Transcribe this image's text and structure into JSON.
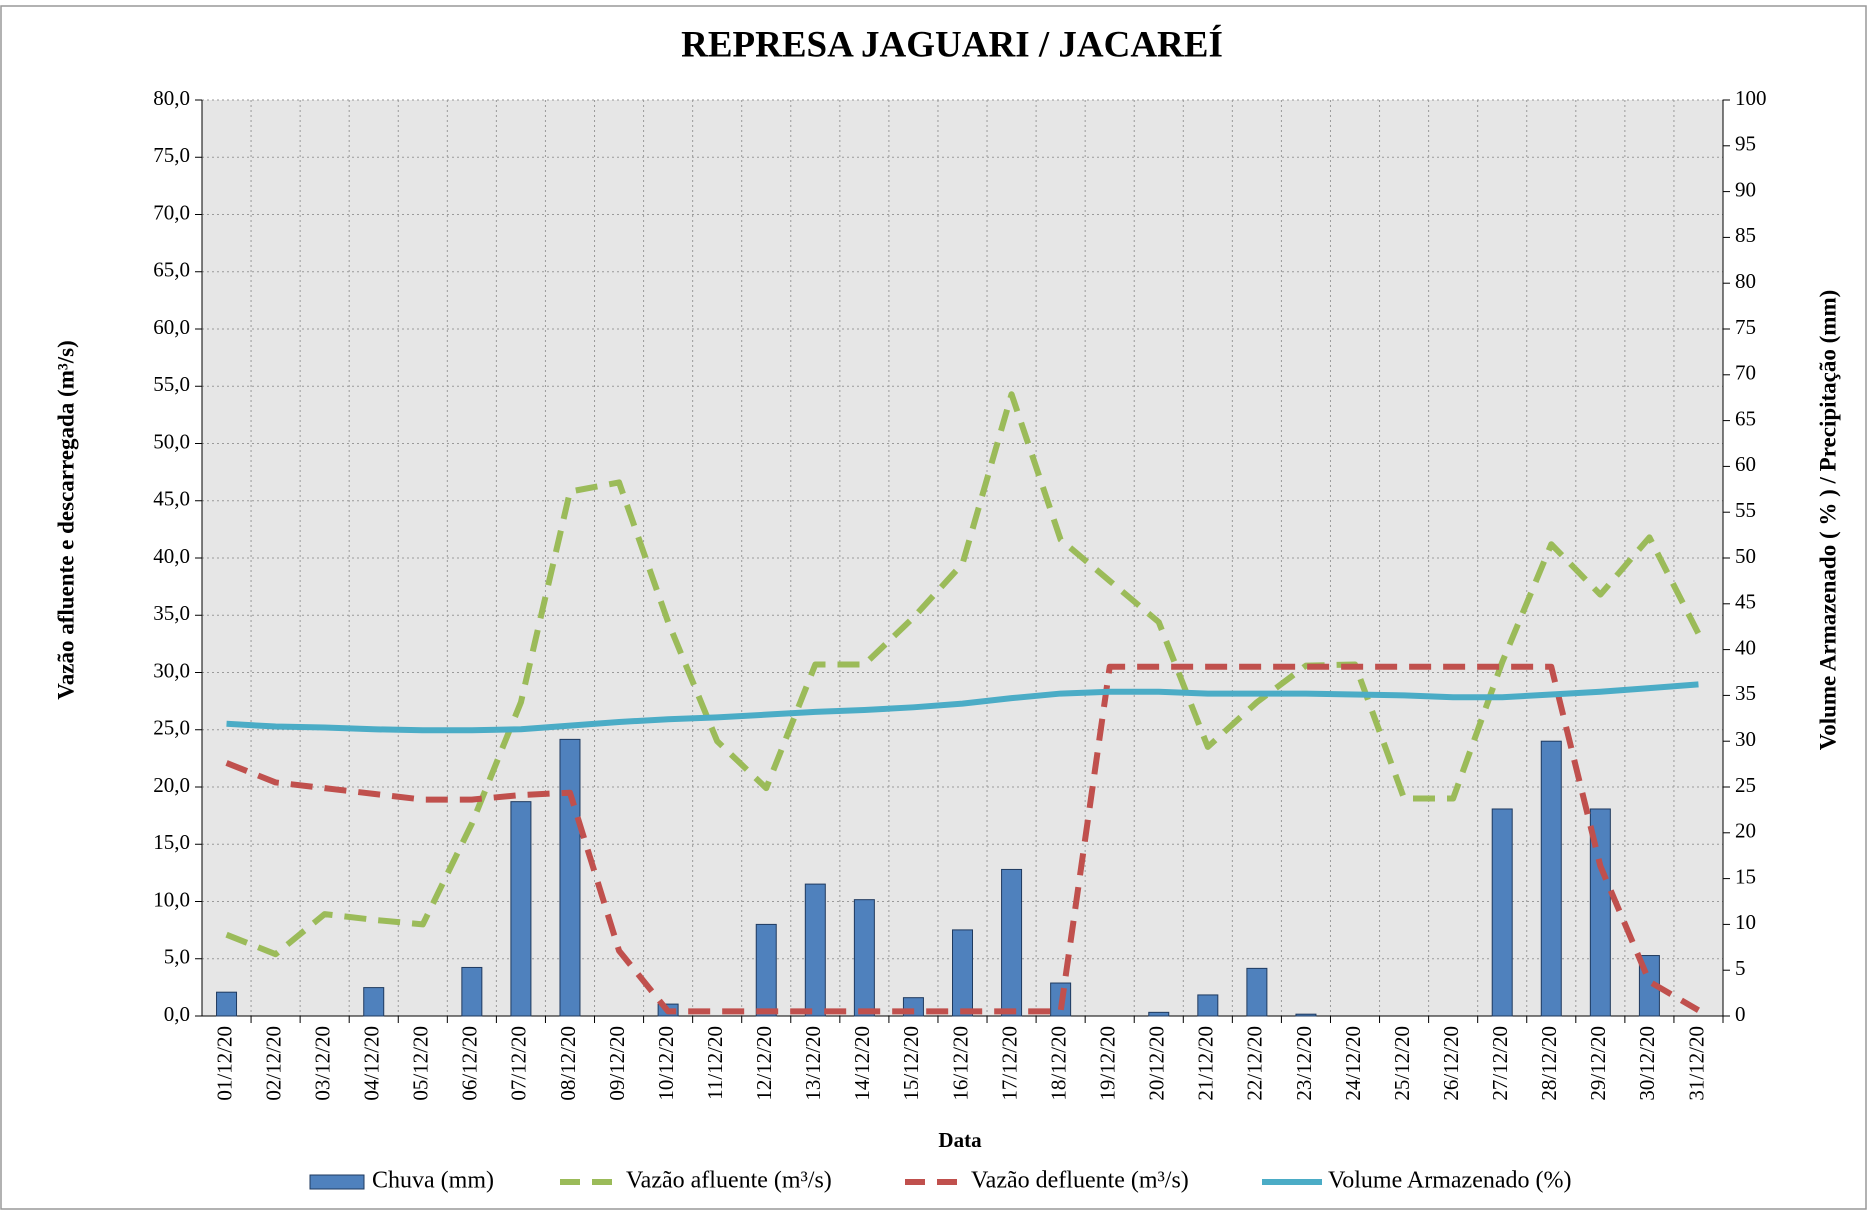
{
  "chart_data": {
    "type": "combo",
    "title": "REPRESA JAGUARI / JACAREÍ",
    "x_label": "Data",
    "y_label": "Vazão afluente e descarregada (m³/s)",
    "y2_label": "Volume Armazenado ( % ) / Precipitação  (mm)",
    "categories": [
      "01/12/20",
      "02/12/20",
      "03/12/20",
      "04/12/20",
      "05/12/20",
      "06/12/20",
      "07/12/20",
      "08/12/20",
      "09/12/20",
      "10/12/20",
      "11/12/20",
      "12/12/20",
      "13/12/20",
      "14/12/20",
      "15/12/20",
      "16/12/20",
      "17/12/20",
      "18/12/20",
      "19/12/20",
      "20/12/20",
      "21/12/20",
      "22/12/20",
      "23/12/20",
      "24/12/20",
      "25/12/20",
      "26/12/20",
      "27/12/20",
      "28/12/20",
      "29/12/20",
      "30/12/20",
      "31/12/20"
    ],
    "series": [
      {
        "name": "Chuva (mm)",
        "type": "bar",
        "axis": "y2",
        "color": "#4f81bd",
        "values": [
          2.6,
          0,
          0,
          3.1,
          0,
          5.3,
          23.4,
          30.2,
          0,
          1.3,
          0,
          10.0,
          14.4,
          12.7,
          2.0,
          9.4,
          16.0,
          3.6,
          0,
          0.4,
          2.3,
          5.2,
          0.2,
          0,
          0,
          0,
          22.6,
          30.0,
          22.6,
          6.6,
          0
        ]
      },
      {
        "name": "Vazão afluente (m³/s)",
        "type": "line",
        "dashed": true,
        "color": "#9bbb59",
        "values": [
          7.1,
          5.4,
          8.9,
          8.4,
          8.0,
          16.8,
          27.4,
          45.8,
          46.6,
          34.4,
          24.0,
          19.9,
          30.7,
          30.7,
          34.8,
          39.5,
          54.3,
          41.6,
          38.0,
          34.4,
          23.5,
          27.4,
          30.6,
          30.7,
          19.0,
          19.0,
          30.9,
          41.2,
          36.8,
          41.8,
          33.4
        ]
      },
      {
        "name": "Vazão defluente (m³/s)",
        "type": "line",
        "dashed": true,
        "color": "#c0504d",
        "values": [
          22.1,
          20.4,
          19.9,
          19.4,
          18.9,
          18.9,
          19.3,
          19.5,
          5.7,
          0.4,
          0.4,
          0.4,
          0.4,
          0.4,
          0.4,
          0.4,
          0.4,
          0.4,
          30.5,
          30.5,
          30.5,
          30.5,
          30.5,
          30.5,
          30.5,
          30.5,
          30.5,
          30.5,
          13.1,
          3.0,
          0.5
        ]
      },
      {
        "name": "Volume Armazenado (%)",
        "type": "line",
        "axis": "y2",
        "color": "#4bacc6",
        "values": [
          31.9,
          31.6,
          31.5,
          31.3,
          31.2,
          31.2,
          31.3,
          31.7,
          32.1,
          32.4,
          32.6,
          32.9,
          33.2,
          33.4,
          33.7,
          34.1,
          34.7,
          35.2,
          35.4,
          35.4,
          35.2,
          35.2,
          35.2,
          35.1,
          35.0,
          34.8,
          34.8,
          35.1,
          35.4,
          35.8,
          36.2
        ]
      }
    ],
    "ylim": [
      0,
      80
    ],
    "yticks": [
      {
        "value": 0,
        "label": "0,0"
      },
      {
        "value": 5,
        "label": "5,0"
      },
      {
        "value": 10,
        "label": "10,0"
      },
      {
        "value": 15,
        "label": "15,0"
      },
      {
        "value": 20,
        "label": "20,0"
      },
      {
        "value": 25,
        "label": "25,0"
      },
      {
        "value": 30,
        "label": "30,0"
      },
      {
        "value": 35,
        "label": "35,0"
      },
      {
        "value": 40,
        "label": "40,0"
      },
      {
        "value": 45,
        "label": "45,0"
      },
      {
        "value": 50,
        "label": "50,0"
      },
      {
        "value": 55,
        "label": "55,0"
      },
      {
        "value": 60,
        "label": "60,0"
      },
      {
        "value": 65,
        "label": "65,0"
      },
      {
        "value": 70,
        "label": "70,0"
      },
      {
        "value": 75,
        "label": "75,0"
      },
      {
        "value": 80,
        "label": "80,0"
      }
    ],
    "y2lim": [
      0,
      100
    ],
    "y2ticks": [
      0,
      5,
      10,
      15,
      20,
      25,
      30,
      35,
      40,
      45,
      50,
      55,
      60,
      65,
      70,
      75,
      80,
      85,
      90,
      95,
      100
    ],
    "grid": true,
    "legend": "bottom"
  }
}
